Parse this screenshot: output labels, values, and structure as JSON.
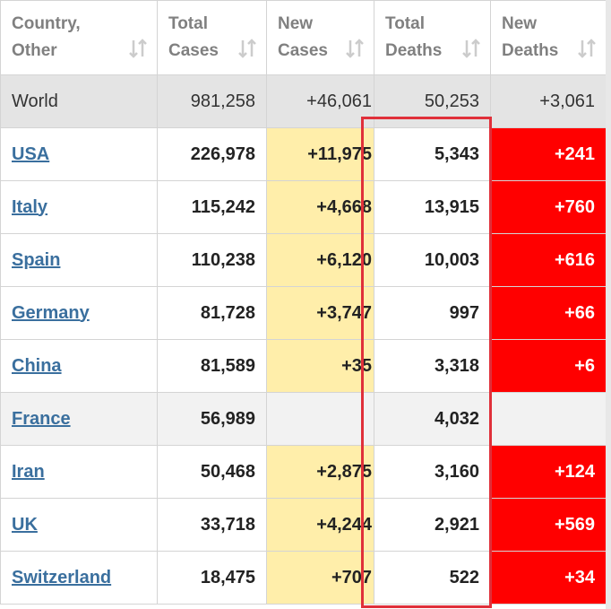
{
  "table": {
    "columns": [
      "Country, Other",
      "Total Cases",
      "New Cases",
      "Total Deaths",
      "New Deaths"
    ],
    "rows": [
      [
        "World",
        "981,258",
        "+46,061",
        "50,253",
        "+3,061"
      ],
      [
        "USA",
        "226,978",
        "+11,975",
        "5,343",
        "+241"
      ],
      [
        "Italy",
        "115,242",
        "+4,668",
        "13,915",
        "+760"
      ],
      [
        "Spain",
        "110,238",
        "+6,120",
        "10,003",
        "+616"
      ],
      [
        "Germany",
        "81,728",
        "+3,747",
        "997",
        "+66"
      ],
      [
        "China",
        "81,589",
        "+35",
        "3,318",
        "+6"
      ],
      [
        "France",
        "56,989",
        null,
        "4,032",
        null
      ],
      [
        "Iran",
        "50,468",
        "+2,875",
        "3,160",
        "+124"
      ],
      [
        "UK",
        "33,718",
        "+4,244",
        "2,921",
        "+569"
      ],
      [
        "Switzerland",
        "18,475",
        "+707",
        "522",
        "+34"
      ]
    ]
  }
}
